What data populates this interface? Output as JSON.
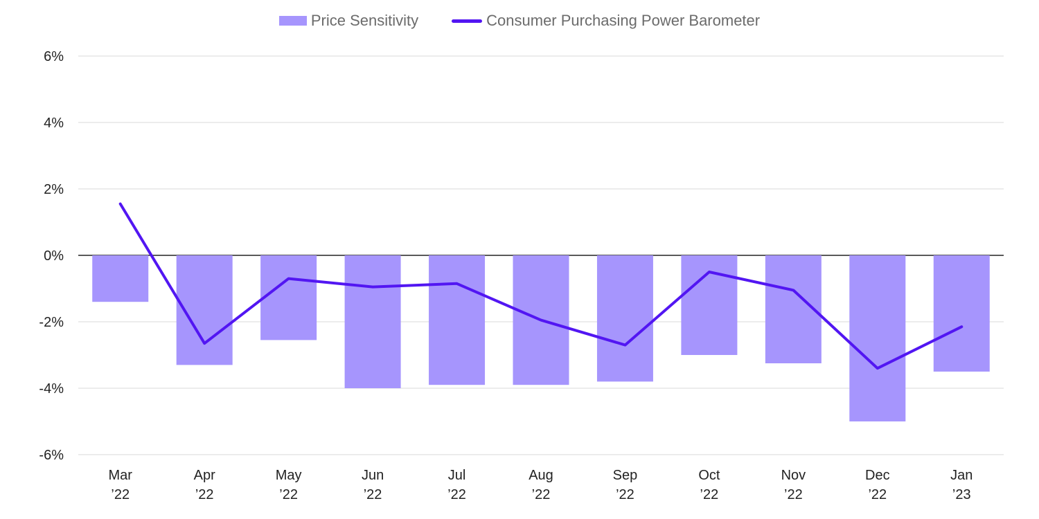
{
  "chart_data": {
    "type": "bar",
    "categories": [
      "Mar '22",
      "Apr '22",
      "May '22",
      "Jun '22",
      "Jul '22",
      "Aug '22",
      "Sep '22",
      "Oct '22",
      "Nov '22",
      "Dec '22",
      "Jan '23"
    ],
    "category_lines": [
      [
        "Mar",
        "’22"
      ],
      [
        "Apr",
        "’22"
      ],
      [
        "May",
        "’22"
      ],
      [
        "Jun",
        "’22"
      ],
      [
        "Jul",
        "’22"
      ],
      [
        "Aug",
        "’22"
      ],
      [
        "Sep",
        "’22"
      ],
      [
        "Oct",
        "’22"
      ],
      [
        "Nov",
        "’22"
      ],
      [
        "Dec",
        "’22"
      ],
      [
        "Jan",
        "’23"
      ]
    ],
    "series": [
      {
        "name": "Price Sensitivity",
        "kind": "bar",
        "color": "#a695fd",
        "values": [
          -1.4,
          -3.3,
          -2.55,
          -4.0,
          -3.9,
          -3.9,
          -3.8,
          -3.0,
          -3.25,
          -5.0,
          -3.5
        ]
      },
      {
        "name": "Consumer Purchasing Power Barometer",
        "kind": "line",
        "color": "#5216f2",
        "values": [
          1.55,
          -2.65,
          -0.7,
          -0.95,
          -0.85,
          -1.95,
          -2.7,
          -0.5,
          -1.05,
          -3.4,
          -2.15
        ]
      }
    ],
    "ylim": [
      -6,
      6
    ],
    "yticks": [
      6,
      4,
      2,
      0,
      -2,
      -4,
      -6
    ],
    "ytick_labels": [
      "6%",
      "4%",
      "2%",
      "0%",
      "-2%",
      "-4%",
      "-6%"
    ],
    "grid": true,
    "legend_position": "top-center",
    "title": "",
    "xlabel": "",
    "ylabel": ""
  }
}
